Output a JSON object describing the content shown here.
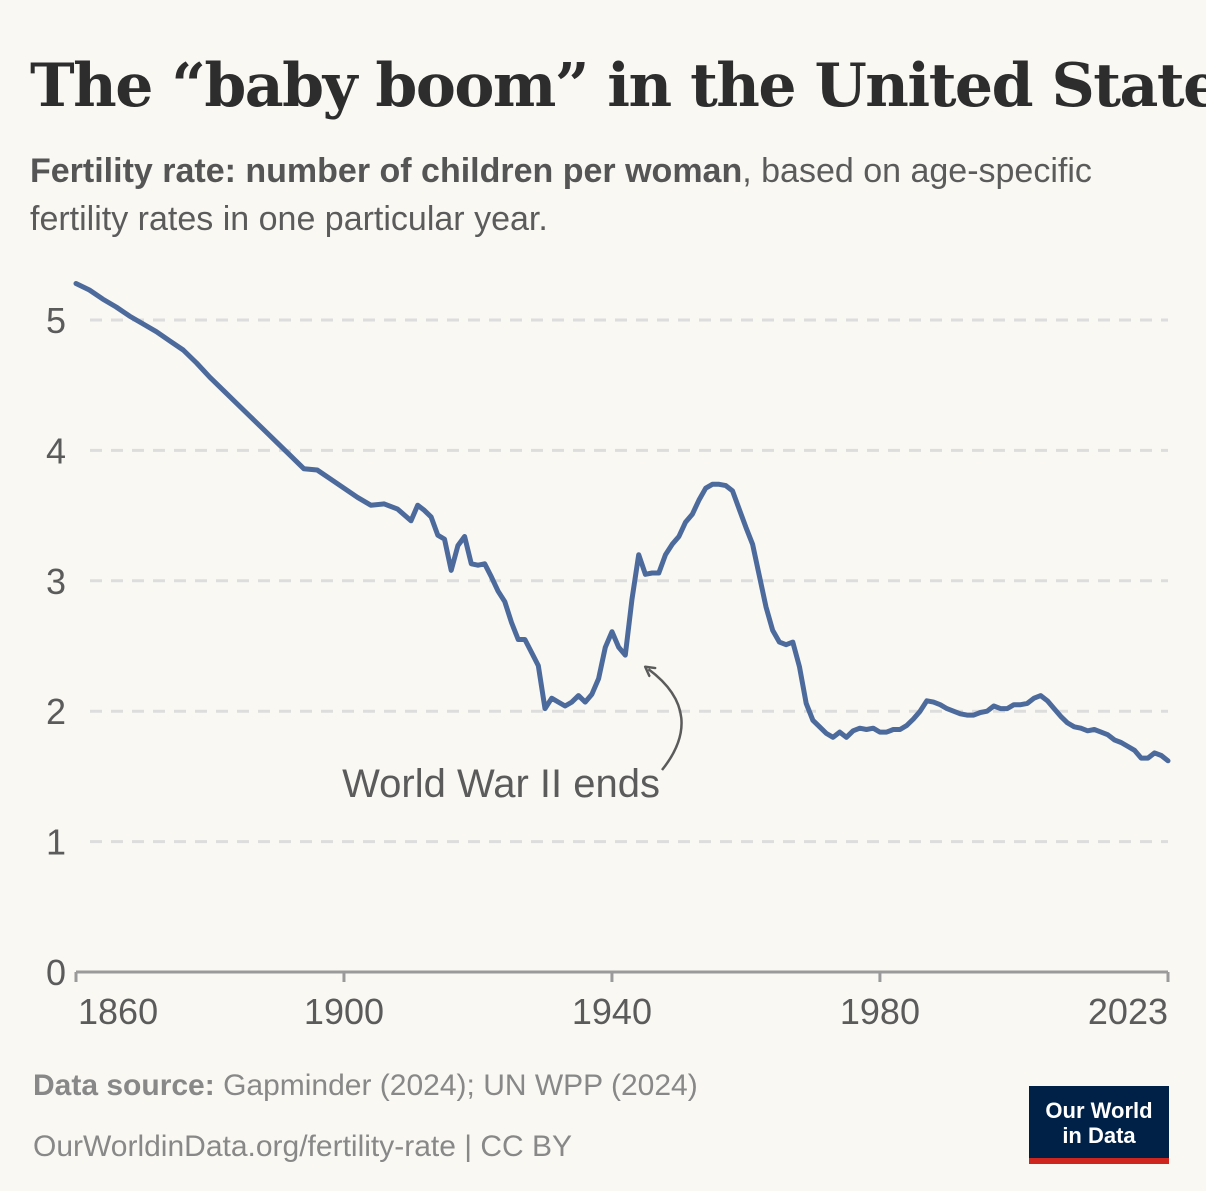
{
  "title_before": "The “baby boom” in the ",
  "title_after": "United States",
  "subtitle_bold": "Fertility rate: number of children per woman",
  "subtitle_rest": ", based on age-specific fertility rates in one particular year.",
  "footer": {
    "source_label": "Data source:",
    "source_text": " Gapminder (2024); UN WPP (2024)",
    "url_text": "OurWorldinData.org/fertility-rate | CC BY"
  },
  "logo": {
    "line1": "Our World",
    "line2": "in Data"
  },
  "colors": {
    "line": "#4c6a9c",
    "grid": "#dddddd",
    "text": "#5b5b5b",
    "logo_bg": "#002147",
    "logo_accent": "#ce261e"
  },
  "chart_data": {
    "type": "line",
    "title": "The “baby boom” in the United States",
    "subtitle": "Fertility rate: number of children per woman, based on age-specific fertility rates in one particular year.",
    "xlabel": "",
    "ylabel": "",
    "xlim": [
      1860,
      2023
    ],
    "ylim": [
      0,
      5
    ],
    "x_ticks": [
      1860,
      1900,
      1940,
      1980,
      2023
    ],
    "y_ticks": [
      0,
      1,
      2,
      3,
      4,
      5
    ],
    "grid": "horizontal dashed",
    "series": [
      {
        "color": "#4c6a9c",
        "x": [
          1860,
          1862,
          1864,
          1866,
          1868,
          1870,
          1872,
          1874,
          1876,
          1878,
          1880,
          1882,
          1884,
          1886,
          1888,
          1890,
          1892,
          1894,
          1896,
          1898,
          1900,
          1902,
          1904,
          1906,
          1908,
          1910,
          1911,
          1912,
          1913,
          1914,
          1915,
          1916,
          1917,
          1918,
          1919,
          1920,
          1921,
          1922,
          1923,
          1924,
          1925,
          1926,
          1927,
          1928,
          1929,
          1930,
          1931,
          1932,
          1933,
          1934,
          1935,
          1936,
          1937,
          1938,
          1939,
          1940,
          1941,
          1942,
          1943,
          1944,
          1945,
          1946,
          1947,
          1948,
          1949,
          1950,
          1951,
          1952,
          1953,
          1954,
          1955,
          1956,
          1957,
          1958,
          1959,
          1960,
          1961,
          1962,
          1963,
          1964,
          1965,
          1966,
          1967,
          1968,
          1969,
          1970,
          1971,
          1972,
          1973,
          1974,
          1975,
          1976,
          1977,
          1978,
          1979,
          1980,
          1981,
          1982,
          1983,
          1984,
          1985,
          1986,
          1987,
          1988,
          1989,
          1990,
          1991,
          1992,
          1993,
          1994,
          1995,
          1996,
          1997,
          1998,
          1999,
          2000,
          2001,
          2002,
          2003,
          2004,
          2005,
          2006,
          2007,
          2008,
          2009,
          2010,
          2011,
          2012,
          2013,
          2014,
          2015,
          2016,
          2017,
          2018,
          2019,
          2020,
          2021,
          2022,
          2023
        ],
        "y": [
          5.28,
          5.23,
          5.16,
          5.1,
          5.03,
          4.97,
          4.91,
          4.84,
          4.77,
          4.67,
          4.56,
          4.46,
          4.36,
          4.26,
          4.16,
          4.06,
          3.96,
          3.86,
          3.85,
          3.78,
          3.71,
          3.64,
          3.58,
          3.59,
          3.55,
          3.46,
          3.58,
          3.54,
          3.49,
          3.35,
          3.32,
          3.08,
          3.27,
          3.34,
          3.13,
          3.12,
          3.13,
          3.03,
          2.92,
          2.84,
          2.68,
          2.55,
          2.55,
          2.45,
          2.35,
          2.02,
          2.1,
          2.07,
          2.04,
          2.07,
          2.12,
          2.07,
          2.13,
          2.25,
          2.49,
          2.61,
          2.49,
          2.43,
          2.86,
          3.2,
          3.05,
          3.06,
          3.06,
          3.2,
          3.28,
          3.34,
          3.45,
          3.51,
          3.62,
          3.71,
          3.74,
          3.74,
          3.73,
          3.69,
          3.55,
          3.41,
          3.28,
          3.04,
          2.8,
          2.62,
          2.53,
          2.51,
          2.53,
          2.34,
          2.06,
          1.93,
          1.88,
          1.83,
          1.8,
          1.84,
          1.8,
          1.85,
          1.87,
          1.86,
          1.87,
          1.84,
          1.84,
          1.86,
          1.86,
          1.89,
          1.94,
          2.0,
          2.08,
          2.07,
          2.05,
          2.02,
          2.0,
          1.98,
          1.97,
          1.97,
          1.99,
          2.0,
          2.04,
          2.02,
          2.02,
          2.05,
          2.05,
          2.06,
          2.1,
          2.12,
          2.08,
          2.02,
          1.96,
          1.91,
          1.88,
          1.87,
          1.85,
          1.86,
          1.84,
          1.82,
          1.78,
          1.76,
          1.73,
          1.7,
          1.64,
          1.64,
          1.68,
          1.66,
          1.62
        ]
      }
    ],
    "annotations": [
      {
        "text": "World War II ends",
        "x": 1945,
        "y": 2.43
      }
    ]
  }
}
